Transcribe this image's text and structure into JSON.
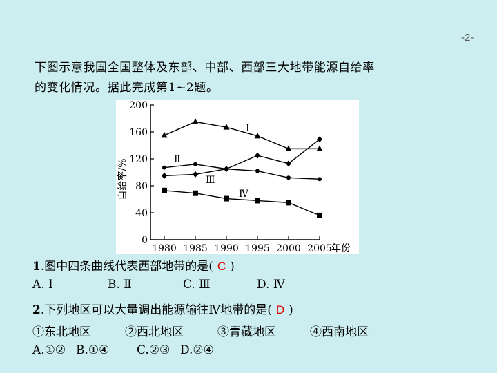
{
  "page_number": "-2-",
  "intro": {
    "line1": "下图示意我国全国整体及东部、中部、西部三大地带能源自给率",
    "line2": "的变化情况。据此完成第1~2题。"
  },
  "chart_data": {
    "type": "line",
    "ylabel": "自给率/%",
    "xlabel_suffix": "年份",
    "x": [
      1980,
      1985,
      1990,
      1995,
      2000,
      2005
    ],
    "ylim": [
      0,
      200
    ],
    "yticks": [
      0,
      40,
      80,
      120,
      160,
      200
    ],
    "grid": false,
    "series": [
      {
        "name": "Ⅰ",
        "marker": "triangle",
        "values": [
          155,
          175,
          167,
          154,
          135,
          135
        ]
      },
      {
        "name": "Ⅱ",
        "marker": "circle",
        "values": [
          107,
          112,
          105,
          102,
          92,
          90
        ]
      },
      {
        "name": "Ⅲ",
        "marker": "diamond",
        "values": [
          95,
          97,
          105,
          125,
          113,
          149
        ]
      },
      {
        "name": "Ⅳ",
        "marker": "square",
        "values": [
          73,
          69,
          61,
          58,
          55,
          36
        ]
      }
    ]
  },
  "q1": {
    "num": "1",
    "text": ".图中四条曲线代表西部地带的是(",
    "answer": "C",
    "close": ")",
    "options": [
      "A. Ⅰ",
      "B. Ⅱ",
      "C. Ⅲ",
      "D. Ⅳ"
    ]
  },
  "q2": {
    "num": "2",
    "text": ".下列地区可以大量调出能源输往Ⅳ地带的是(",
    "answer": "D",
    "close": ")",
    "items": [
      "①东北地区",
      "②西北地区",
      "③青藏地区",
      "④西南地区"
    ],
    "options": [
      "A.①②",
      "B.①④",
      "C.②③",
      "D.②④"
    ]
  }
}
